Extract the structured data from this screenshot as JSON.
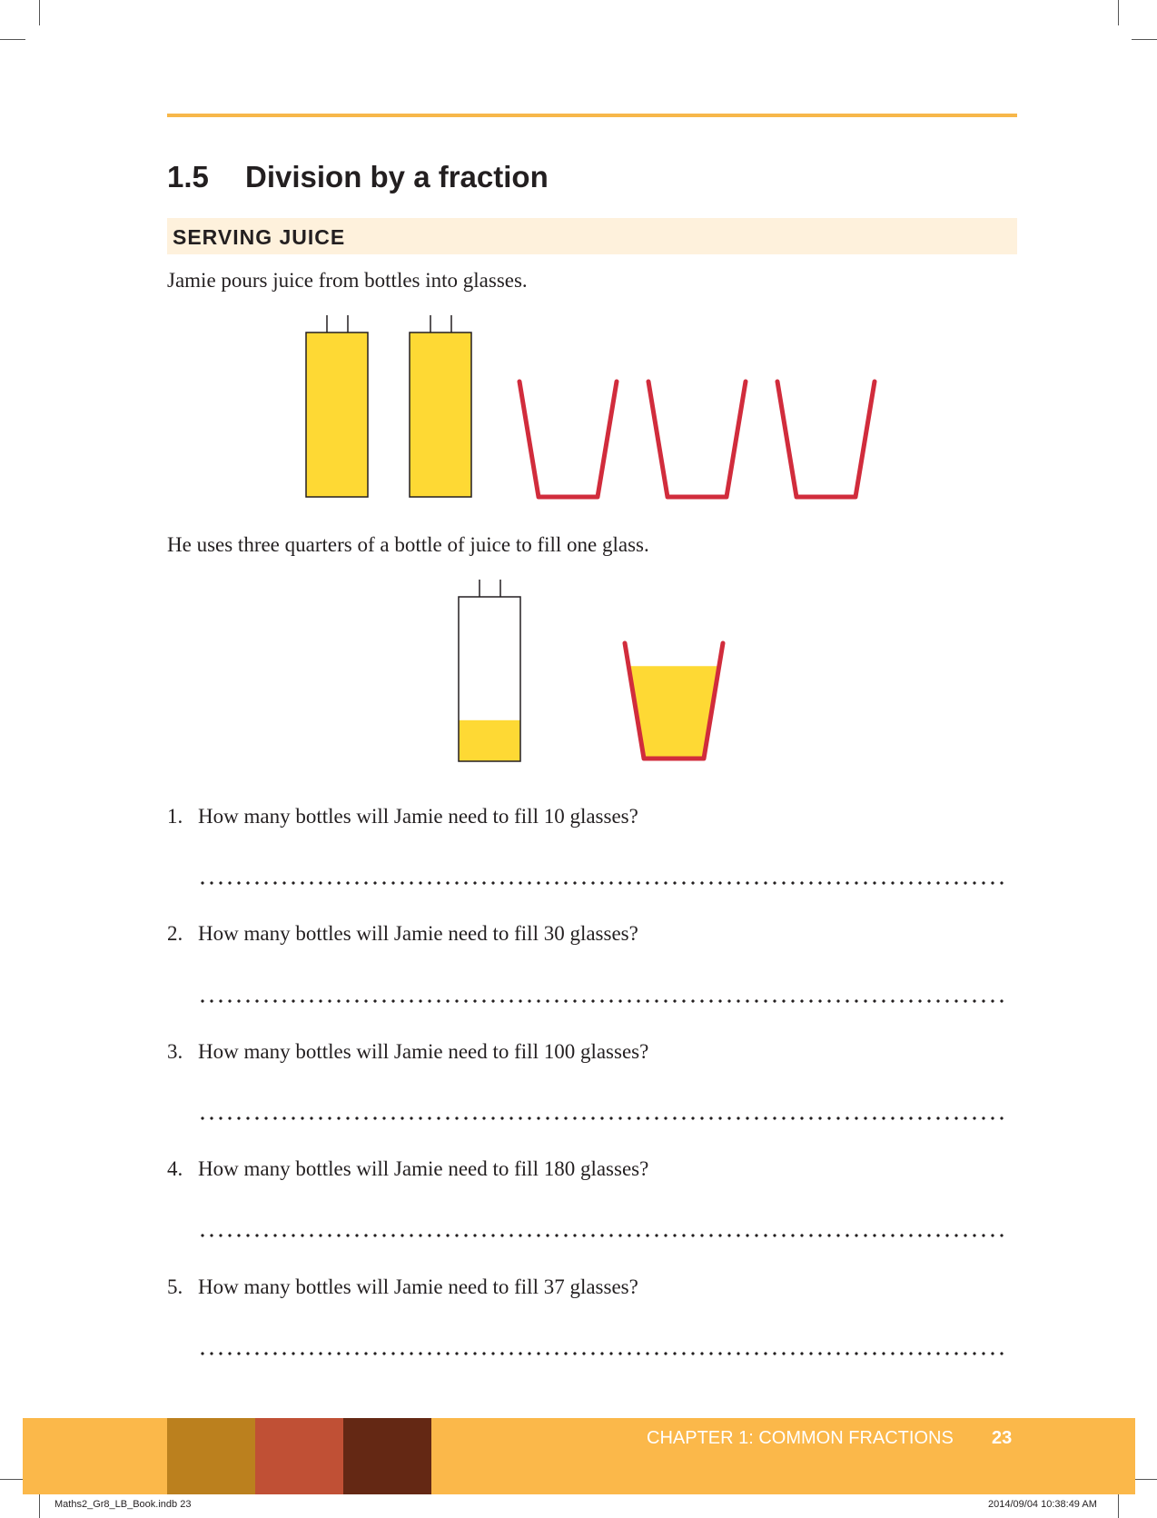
{
  "section": {
    "number": "1.5",
    "title": "Division by a fraction"
  },
  "subheading": "SERVING JUICE",
  "intro": "Jamie pours juice from bottles into glasses.",
  "statement": "He uses three quarters of a bottle of juice to fill one glass.",
  "questions": [
    {
      "num": "1.",
      "text": "How many bottles will Jamie need to fill 10 glasses?"
    },
    {
      "num": "2.",
      "text": "How many bottles will Jamie need to fill 30 glasses?"
    },
    {
      "num": "3.",
      "text": "How many bottles will Jamie need to fill 100 glasses?"
    },
    {
      "num": "4.",
      "text": "How many bottles will Jamie need to fill 180 glasses?"
    },
    {
      "num": "5.",
      "text": "How many bottles will Jamie need to fill 37 glasses?"
    }
  ],
  "illustration": {
    "bottle_fill_level": 0.25,
    "glass_fill_level": 0.8,
    "full_bottles": 2,
    "empty_glasses": 3
  },
  "footer": {
    "chapter": "CHAPTER 1: COMMON FRACTIONS",
    "page": "23",
    "file_slug": "Maths2_Gr8_LB_Book.indb   23",
    "timestamp": "2014/09/04   10:38:49 AM"
  },
  "colors": {
    "accent_orange": "#fbb84a",
    "juice_yellow": "#fed934",
    "glass_red": "#d12c3c",
    "swatch_1": "#bb801e",
    "swatch_2": "#c05035",
    "swatch_3": "#642814",
    "subheading_bg": "#fef1dc"
  }
}
